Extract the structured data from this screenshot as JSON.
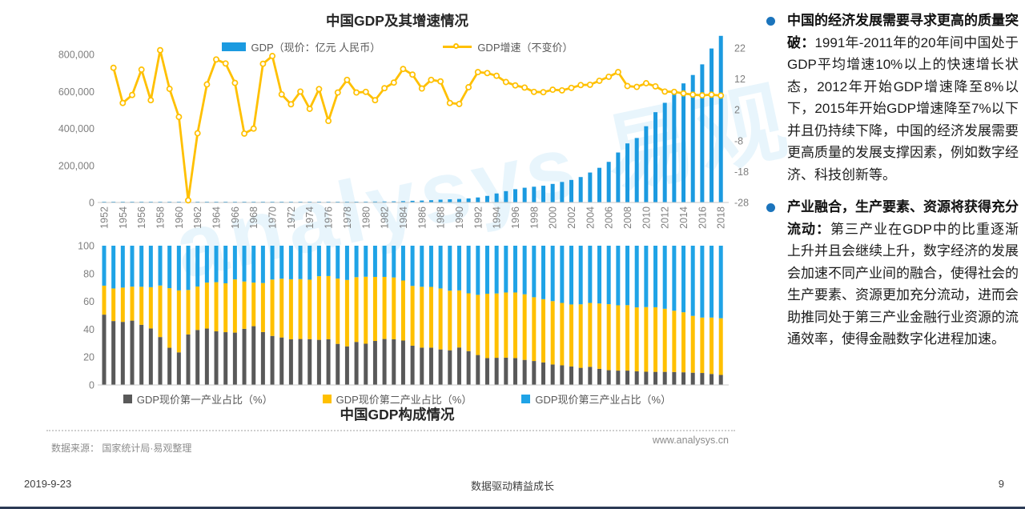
{
  "page": {
    "watermark": "analysys 易观",
    "source_note": "数据来源：  国家统计局·易观整理",
    "website": "www.analysys.cn",
    "footer": {
      "date": "2019-9-23",
      "center": "数据驱动精益成长",
      "page_number": "9"
    },
    "bullet_color": "#1B74BC"
  },
  "right_panel": {
    "bullets": [
      {
        "heading": "中国的经济发展需要寻求更高的质量突破：",
        "text": "1991年-2011年的20年间中国处于GDP平均增速10%以上的快速增长状态，2012年开始GDP增速降至8%以下，2015年开始GDP增速降至7%以下并且仍持续下降，中国的经济发展需要更高质量的发展支撑因素，例如数字经济、科技创新等。"
      },
      {
        "heading": "产业融合，生产要素、资源将获得充分流动：",
        "text": "第三产业在GDP中的比重逐渐上升并且会继续上升，数字经济的发展会加速不同产业间的融合，使得社会的生产要素、资源更加充分流动，进而会助推同处于第三产业金融行业资源的流通效率，使得金融数字化进程加速。"
      }
    ]
  },
  "chart_data": [
    {
      "type": "bar",
      "subtype": "bar+line dual axis",
      "title": "中国GDP及其增速情况",
      "legend_position": "top-center",
      "grid": false,
      "x": [
        1952,
        1953,
        1954,
        1955,
        1956,
        1957,
        1958,
        1959,
        1960,
        1961,
        1962,
        1963,
        1964,
        1965,
        1966,
        1967,
        1968,
        1969,
        1970,
        1971,
        1972,
        1973,
        1974,
        1975,
        1976,
        1977,
        1978,
        1979,
        1980,
        1981,
        1982,
        1983,
        1984,
        1985,
        1986,
        1987,
        1988,
        1989,
        1990,
        1991,
        1992,
        1993,
        1994,
        1995,
        1996,
        1997,
        1998,
        1999,
        2000,
        2001,
        2002,
        2003,
        2004,
        2005,
        2006,
        2007,
        2008,
        2009,
        2010,
        2011,
        2012,
        2013,
        2014,
        2015,
        2016,
        2017,
        2018
      ],
      "x_tick_labels": [
        1952,
        1954,
        1956,
        1958,
        1960,
        1962,
        1964,
        1966,
        1968,
        1970,
        1972,
        1974,
        1976,
        1978,
        1980,
        1982,
        1984,
        1986,
        1988,
        1990,
        1992,
        1994,
        1996,
        1998,
        2000,
        2002,
        2004,
        2006,
        2008,
        2010,
        2012,
        2014,
        2016,
        2018
      ],
      "left_axis": {
        "ticks": [
          0,
          200000,
          400000,
          600000,
          800000
        ],
        "tick_labels": [
          "0",
          "200,000",
          "400,000",
          "600,000",
          "800,000"
        ],
        "range": [
          0,
          908000
        ]
      },
      "right_axis": {
        "ticks": [
          22,
          12,
          2,
          -8,
          -18,
          -28
        ],
        "tick_labels": [
          "22",
          "12",
          "2",
          "-8",
          "-18",
          "-28"
        ],
        "range": [
          -28,
          26.5
        ]
      },
      "series": [
        {
          "name": "GDP（现价：亿元 人民币）",
          "type": "bar",
          "axis": "left",
          "color": "#1B9AE0",
          "values": [
            679,
            824,
            859,
            911,
            1030,
            1071,
            1312,
            1447,
            1470,
            1232,
            1162,
            1248,
            1469,
            1734,
            1888,
            1794,
            1744,
            1962,
            2279,
            2456,
            2532,
            2730,
            2803,
            3013,
            2961,
            3221,
            3678,
            4100,
            4587,
            4935,
            5373,
            6020,
            7278,
            9098,
            10376,
            12174,
            15180,
            17179,
            18872,
            22005,
            27194,
            35673,
            48637,
            61339,
            71813,
            79715,
            85195,
            90564,
            100280,
            110863,
            121717,
            137422,
            161840,
            187318,
            219438,
            270092,
            319244,
            348517,
            412119,
            487940,
            538580,
            592963,
            643563,
            688858,
            746395,
            832035,
            900309
          ]
        },
        {
          "name": "GDP增速（不变价）",
          "type": "line",
          "axis": "right",
          "color": "#FFC000",
          "marker": "open-circle",
          "values": [
            null,
            15.6,
            4.2,
            6.8,
            15.0,
            5.1,
            21.3,
            8.8,
            -0.3,
            -27.3,
            -5.6,
            10.2,
            18.3,
            17.0,
            10.7,
            -5.7,
            -4.1,
            16.9,
            19.4,
            7.0,
            3.8,
            7.9,
            2.3,
            8.7,
            -1.6,
            7.6,
            11.7,
            7.6,
            7.8,
            5.1,
            9.0,
            10.8,
            15.2,
            13.4,
            8.9,
            11.7,
            11.2,
            4.2,
            3.9,
            9.3,
            14.2,
            13.9,
            13.0,
            11.0,
            9.9,
            9.2,
            7.8,
            7.7,
            8.5,
            8.3,
            9.1,
            10.0,
            10.1,
            11.4,
            12.7,
            14.2,
            9.7,
            9.4,
            10.6,
            9.6,
            7.9,
            7.8,
            7.3,
            6.9,
            6.7,
            6.9,
            6.6
          ]
        }
      ]
    },
    {
      "type": "bar",
      "subtype": "stacked percent bars",
      "title": "中国GDP构成情况",
      "legend_position": "bottom-center",
      "grid": false,
      "categories": [
        1952,
        1953,
        1954,
        1955,
        1956,
        1957,
        1958,
        1959,
        1960,
        1961,
        1962,
        1963,
        1964,
        1965,
        1966,
        1967,
        1968,
        1969,
        1970,
        1971,
        1972,
        1973,
        1974,
        1975,
        1976,
        1977,
        1978,
        1979,
        1980,
        1981,
        1982,
        1983,
        1984,
        1985,
        1986,
        1987,
        1988,
        1989,
        1990,
        1991,
        1992,
        1993,
        1994,
        1995,
        1996,
        1997,
        1998,
        1999,
        2000,
        2001,
        2002,
        2003,
        2004,
        2005,
        2006,
        2007,
        2008,
        2009,
        2010,
        2011,
        2012,
        2013,
        2014,
        2015,
        2016,
        2017,
        2018
      ],
      "y_axis": {
        "ticks": [
          0,
          20,
          40,
          60,
          80,
          100
        ],
        "range": [
          0,
          100
        ]
      },
      "series": [
        {
          "name": "GDP现价第一产业占比（%）",
          "color": "#595959",
          "values": [
            50.5,
            45.9,
            45.3,
            46.2,
            43.2,
            40.6,
            34.4,
            26.7,
            23.4,
            36.3,
            39.5,
            40.5,
            38.5,
            37.9,
            37.6,
            40.3,
            42.2,
            38.0,
            35.2,
            34.1,
            32.8,
            33.0,
            32.9,
            32.4,
            32.8,
            29.5,
            27.7,
            30.9,
            29.6,
            31.6,
            33.0,
            32.8,
            31.9,
            28.2,
            26.8,
            26.8,
            25.5,
            24.9,
            26.9,
            24.3,
            21.5,
            19.3,
            19.5,
            19.6,
            19.3,
            18.0,
            17.2,
            16.2,
            14.7,
            14.1,
            13.3,
            12.3,
            13.0,
            11.6,
            10.6,
            10.3,
            10.3,
            9.8,
            9.5,
            9.4,
            9.4,
            9.3,
            9.1,
            8.8,
            8.6,
            7.9,
            7.2
          ]
        },
        {
          "name": "GDP现价第二产业占比（%）",
          "color": "#FFC000",
          "values": [
            20.8,
            23.4,
            24.6,
            24.4,
            27.3,
            29.6,
            37.0,
            42.8,
            44.5,
            31.9,
            31.2,
            33.0,
            35.3,
            35.1,
            38.2,
            34.0,
            31.3,
            35.2,
            40.5,
            42.2,
            43.1,
            43.0,
            42.7,
            45.7,
            45.4,
            46.9,
            47.7,
            46.5,
            48.1,
            46.0,
            44.6,
            44.4,
            43.1,
            42.9,
            43.7,
            43.6,
            43.8,
            42.8,
            41.0,
            41.5,
            43.2,
            46.2,
            46.2,
            46.8,
            47.1,
            47.1,
            45.8,
            45.4,
            45.5,
            44.8,
            44.5,
            45.6,
            45.9,
            46.9,
            47.4,
            46.9,
            47.0,
            45.9,
            46.4,
            46.4,
            45.3,
            44.0,
            43.1,
            40.8,
            39.8,
            40.5,
            40.7
          ]
        },
        {
          "name": "GDP现价第三产业占比（%）",
          "color": "#1FA3E6",
          "values": [
            28.7,
            30.7,
            30.1,
            29.4,
            29.5,
            29.8,
            28.6,
            30.5,
            32.1,
            31.8,
            29.3,
            26.5,
            26.2,
            27.0,
            24.2,
            25.7,
            26.5,
            26.8,
            24.3,
            23.7,
            24.1,
            24.0,
            24.4,
            21.9,
            21.8,
            23.6,
            24.6,
            22.6,
            22.3,
            22.4,
            22.4,
            22.8,
            25.0,
            28.9,
            29.5,
            29.6,
            30.7,
            32.3,
            32.1,
            34.2,
            35.3,
            34.5,
            34.3,
            33.6,
            33.6,
            34.9,
            37.0,
            38.4,
            39.8,
            41.1,
            42.2,
            42.1,
            41.1,
            41.5,
            42.0,
            42.8,
            42.7,
            44.3,
            44.1,
            44.2,
            45.3,
            46.7,
            47.8,
            50.4,
            51.6,
            51.6,
            52.1
          ]
        }
      ]
    }
  ]
}
